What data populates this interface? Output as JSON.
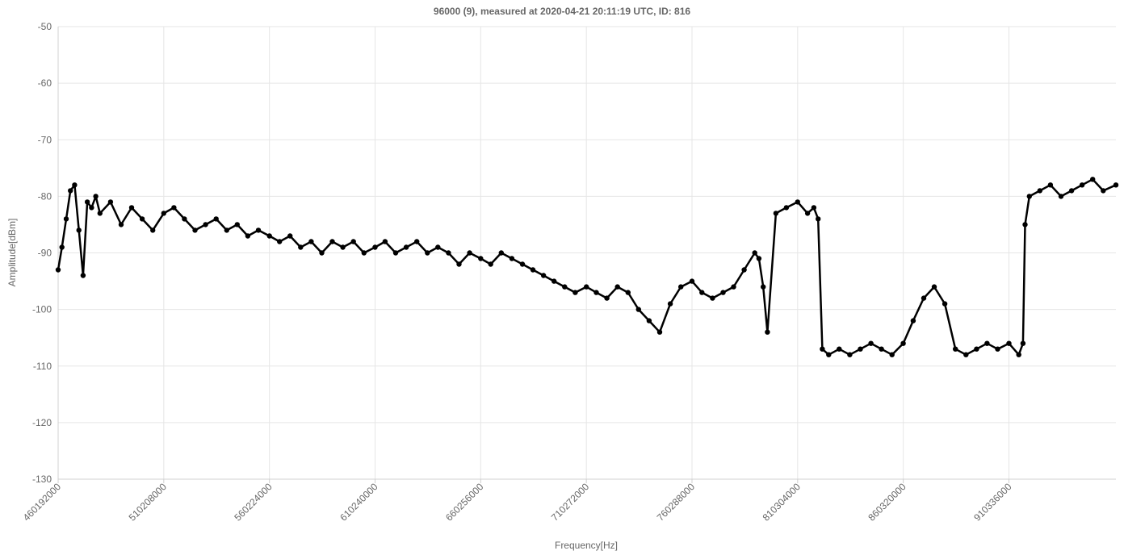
{
  "chart_data": {
    "type": "line",
    "title": "96000 (9), measured at 2020-04-21 20:11:19 UTC, ID: 816",
    "xlabel": "Frequency[Hz]",
    "ylabel": "Amplitude[dBm]",
    "xlim": [
      460192000,
      961000000
    ],
    "ylim": [
      -130,
      -50
    ],
    "x_ticks": [
      "460192000",
      "510208000",
      "560224000",
      "610240000",
      "660256000",
      "710272000",
      "760288000",
      "810304000",
      "860320000",
      "910336000"
    ],
    "x_tick_values": [
      460192000,
      510208000,
      560224000,
      610240000,
      660256000,
      710272000,
      760288000,
      810304000,
      860320000,
      910336000
    ],
    "y_ticks": [
      -50,
      -60,
      -70,
      -80,
      -90,
      -100,
      -110,
      -120,
      -130
    ],
    "grid": true,
    "line_color": "#000000",
    "series": [
      {
        "x": [
          460192000,
          462000000,
          464000000,
          466000000,
          468000000,
          470000000,
          472000000,
          474000000,
          476000000,
          478000000,
          480000000,
          485000000,
          490000000,
          495000000,
          500000000,
          505000000,
          510208000,
          515000000,
          520000000,
          525000000,
          530000000,
          535000000,
          540000000,
          545000000,
          550000000,
          555000000,
          560224000,
          565000000,
          570000000,
          575000000,
          580000000,
          585000000,
          590000000,
          595000000,
          600000000,
          605000000,
          610240000,
          615000000,
          620000000,
          625000000,
          630000000,
          635000000,
          640000000,
          645000000,
          650000000,
          655000000,
          660256000,
          665000000,
          670000000,
          675000000,
          680000000,
          685000000,
          690000000,
          695000000,
          700000000,
          705000000,
          710272000,
          715000000,
          720000000,
          725000000,
          730000000,
          735000000,
          740000000,
          745000000,
          750000000,
          755000000,
          760288000,
          765000000,
          770000000,
          775000000,
          780000000,
          785000000,
          790000000,
          792000000,
          794000000,
          796000000,
          800000000,
          805000000,
          810304000,
          815000000,
          818000000,
          820000000,
          822000000,
          825000000,
          830000000,
          835000000,
          840000000,
          845000000,
          850000000,
          855000000,
          860320000,
          865000000,
          870000000,
          875000000,
          880000000,
          885000000,
          890000000,
          895000000,
          900000000,
          905000000,
          910336000,
          915000000,
          917000000,
          918000000,
          920000000,
          925000000,
          930000000,
          935000000,
          940000000,
          945000000,
          950000000,
          955000000,
          961000000
        ],
        "y": [
          -93,
          -89,
          -84,
          -79,
          -78,
          -86,
          -94,
          -81,
          -82,
          -80,
          -83,
          -81,
          -85,
          -82,
          -84,
          -86,
          -83,
          -82,
          -84,
          -86,
          -85,
          -84,
          -86,
          -85,
          -87,
          -86,
          -87,
          -88,
          -87,
          -89,
          -88,
          -90,
          -88,
          -89,
          -88,
          -90,
          -89,
          -88,
          -90,
          -89,
          -88,
          -90,
          -89,
          -90,
          -92,
          -90,
          -91,
          -92,
          -90,
          -91,
          -92,
          -93,
          -94,
          -95,
          -96,
          -97,
          -96,
          -97,
          -98,
          -96,
          -97,
          -100,
          -102,
          -104,
          -99,
          -96,
          -95,
          -97,
          -98,
          -97,
          -96,
          -93,
          -90,
          -91,
          -96,
          -104,
          -83,
          -82,
          -81,
          -83,
          -82,
          -84,
          -107,
          -108,
          -107,
          -108,
          -107,
          -106,
          -107,
          -108,
          -106,
          -102,
          -98,
          -96,
          -99,
          -107,
          -108,
          -107,
          -106,
          -107,
          -106,
          -108,
          -106,
          -85,
          -80,
          -79,
          -78,
          -80,
          -79,
          -78,
          -77,
          -79,
          -78
        ]
      }
    ]
  }
}
